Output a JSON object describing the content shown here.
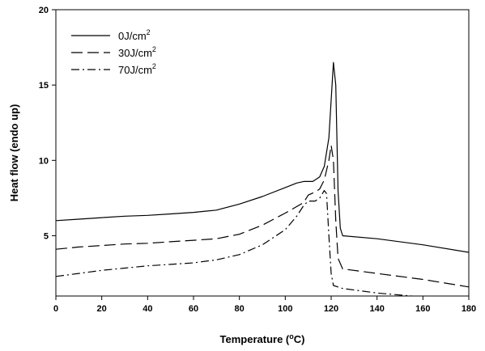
{
  "chart_data": {
    "type": "line",
    "title": "",
    "xlabel": {
      "prefix": "Temperature (",
      "sup": "o",
      "suffix": "C)"
    },
    "ylabel": "Heat flow (endo up)",
    "xlim": [
      0,
      180
    ],
    "ylim": [
      1,
      20
    ],
    "xticks": [
      "0",
      "20",
      "40",
      "60",
      "80",
      "100",
      "120",
      "140",
      "160",
      "180"
    ],
    "yticks": [
      "5",
      "10",
      "15",
      "20"
    ],
    "grid": false,
    "legend_position": "top-left",
    "series": [
      {
        "name": {
          "base": "0J/cm",
          "sup": "2"
        },
        "dash": "solid",
        "color": "#000000",
        "points": [
          [
            0,
            6.0
          ],
          [
            10,
            6.1
          ],
          [
            20,
            6.2
          ],
          [
            30,
            6.3
          ],
          [
            40,
            6.35
          ],
          [
            50,
            6.45
          ],
          [
            60,
            6.55
          ],
          [
            70,
            6.7
          ],
          [
            80,
            7.1
          ],
          [
            90,
            7.6
          ],
          [
            100,
            8.2
          ],
          [
            105,
            8.5
          ],
          [
            108,
            8.6
          ],
          [
            112,
            8.6
          ],
          [
            115,
            8.9
          ],
          [
            117,
            9.6
          ],
          [
            119,
            11.5
          ],
          [
            120,
            14.0
          ],
          [
            121,
            16.5
          ],
          [
            122,
            15.0
          ],
          [
            123,
            8.0
          ],
          [
            124,
            5.5
          ],
          [
            125,
            5.0
          ],
          [
            140,
            4.8
          ],
          [
            160,
            4.4
          ],
          [
            180,
            3.9
          ]
        ]
      },
      {
        "name": {
          "base": "30J/cm",
          "sup": "2"
        },
        "dash": "long-dash",
        "color": "#000000",
        "points": [
          [
            0,
            4.1
          ],
          [
            10,
            4.25
          ],
          [
            20,
            4.35
          ],
          [
            30,
            4.45
          ],
          [
            40,
            4.5
          ],
          [
            50,
            4.6
          ],
          [
            60,
            4.7
          ],
          [
            70,
            4.8
          ],
          [
            80,
            5.1
          ],
          [
            90,
            5.7
          ],
          [
            100,
            6.5
          ],
          [
            108,
            7.2
          ],
          [
            110,
            7.7
          ],
          [
            113,
            7.9
          ],
          [
            115,
            8.1
          ],
          [
            117,
            8.7
          ],
          [
            119,
            10.0
          ],
          [
            120,
            11.0
          ],
          [
            121,
            10.0
          ],
          [
            122,
            6.0
          ],
          [
            123,
            3.5
          ],
          [
            125,
            2.8
          ],
          [
            140,
            2.5
          ],
          [
            160,
            2.1
          ],
          [
            180,
            1.6
          ]
        ]
      },
      {
        "name": {
          "base": "70J/cm",
          "sup": "2"
        },
        "dash": "dash-dot",
        "color": "#000000",
        "points": [
          [
            0,
            2.3
          ],
          [
            10,
            2.5
          ],
          [
            20,
            2.7
          ],
          [
            30,
            2.85
          ],
          [
            40,
            3.0
          ],
          [
            50,
            3.1
          ],
          [
            60,
            3.2
          ],
          [
            70,
            3.4
          ],
          [
            80,
            3.75
          ],
          [
            90,
            4.4
          ],
          [
            100,
            5.4
          ],
          [
            105,
            6.3
          ],
          [
            108,
            7.0
          ],
          [
            110,
            7.3
          ],
          [
            113,
            7.3
          ],
          [
            115,
            7.5
          ],
          [
            117,
            8.0
          ],
          [
            118,
            7.8
          ],
          [
            119,
            5.0
          ],
          [
            120,
            2.5
          ],
          [
            121,
            1.7
          ],
          [
            125,
            1.5
          ],
          [
            140,
            1.2
          ],
          [
            155,
            1.0
          ],
          [
            160,
            0.9
          ],
          [
            180,
            0.7
          ]
        ]
      }
    ]
  }
}
